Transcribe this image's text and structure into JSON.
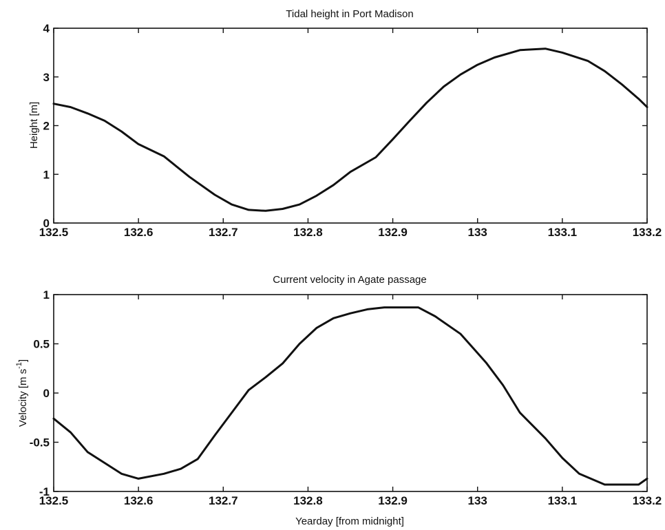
{
  "chart_data": [
    {
      "type": "line",
      "title": "Tidal height in Port Madison",
      "xlabel": "",
      "ylabel": "Height [m]",
      "xlim": [
        132.5,
        133.2
      ],
      "ylim": [
        0,
        4
      ],
      "xticks": [
        132.5,
        132.6,
        132.7,
        132.8,
        132.9,
        133,
        133.1,
        133.2
      ],
      "xtick_labels": [
        "132.5",
        "132.6",
        "132.7",
        "132.8",
        "132.9",
        "133",
        "133.1",
        "133.2"
      ],
      "yticks": [
        0,
        1,
        2,
        3,
        4
      ],
      "ytick_labels": [
        "0",
        "1",
        "2",
        "3",
        "4"
      ],
      "grid": false,
      "series": [
        {
          "x": [
            132.5,
            132.52,
            132.54,
            132.56,
            132.58,
            132.6,
            132.63,
            132.66,
            132.69,
            132.71,
            132.73,
            132.75,
            132.77,
            132.79,
            132.81,
            132.83,
            132.85,
            132.88,
            132.9,
            132.92,
            132.94,
            132.96,
            132.98,
            133,
            133.02,
            133.05,
            133.08,
            133.1,
            133.13,
            133.15,
            133.17,
            133.19,
            133.2
          ],
          "y": [
            2.45,
            2.38,
            2.25,
            2.1,
            1.88,
            1.62,
            1.37,
            0.95,
            0.58,
            0.38,
            0.27,
            0.25,
            0.29,
            0.38,
            0.56,
            0.78,
            1.05,
            1.35,
            1.72,
            2.1,
            2.47,
            2.8,
            3.05,
            3.25,
            3.4,
            3.55,
            3.58,
            3.5,
            3.33,
            3.12,
            2.85,
            2.55,
            2.38
          ]
        }
      ]
    },
    {
      "type": "line",
      "title": "Current velocity in Agate passage",
      "xlabel": "Yearday [from midnight]",
      "ylabel": "Velocity [m s-1]",
      "ylabel_main": "Velocity [m s",
      "ylabel_sup": "-1",
      "ylabel_end": "]",
      "xlim": [
        132.5,
        133.2
      ],
      "ylim": [
        -1,
        1
      ],
      "xticks": [
        132.5,
        132.6,
        132.7,
        132.8,
        132.9,
        133,
        133.1,
        133.2
      ],
      "xtick_labels": [
        "132.5",
        "132.6",
        "132.7",
        "132.8",
        "132.9",
        "133",
        "133.1",
        "133.2"
      ],
      "yticks": [
        -1,
        -0.5,
        0,
        0.5,
        1
      ],
      "ytick_labels": [
        "-1",
        "-0.5",
        "0",
        "0.5",
        "1"
      ],
      "grid": false,
      "series": [
        {
          "x": [
            132.5,
            132.52,
            132.54,
            132.56,
            132.58,
            132.6,
            132.63,
            132.65,
            132.67,
            132.69,
            132.71,
            132.73,
            132.75,
            132.77,
            132.79,
            132.81,
            132.83,
            132.85,
            132.87,
            132.89,
            132.91,
            132.93,
            132.95,
            132.98,
            133.01,
            133.03,
            133.05,
            133.08,
            133.1,
            133.12,
            133.15,
            133.19,
            133.2
          ],
          "y": [
            -0.26,
            -0.4,
            -0.6,
            -0.71,
            -0.82,
            -0.87,
            -0.82,
            -0.77,
            -0.67,
            -0.43,
            -0.2,
            0.03,
            0.16,
            0.3,
            0.5,
            0.66,
            0.76,
            0.81,
            0.85,
            0.87,
            0.87,
            0.87,
            0.78,
            0.6,
            0.31,
            0.08,
            -0.2,
            -0.46,
            -0.66,
            -0.82,
            -0.93,
            -0.93,
            -0.87
          ]
        }
      ]
    }
  ]
}
